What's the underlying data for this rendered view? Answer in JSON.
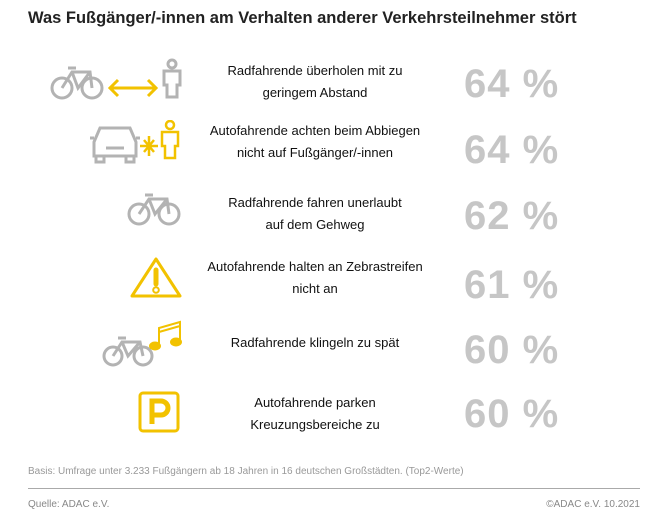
{
  "title": "Was Fußgänger/-innen am Verhalten anderer Verkehrsteilnehmer stört",
  "colors": {
    "accent": "#f2c200",
    "icon_gray": "#b3b3b3",
    "percent_gray": "#c6c6c6"
  },
  "rows": [
    {
      "line1": "Radfahrende überholen mit zu",
      "line2": "geringem Abstand",
      "value": "64 %",
      "icon": "bicycle-arrow-pedestrian-icon"
    },
    {
      "line1": "Autofahrende achten beim Abbiegen",
      "line2": "nicht auf Fußgänger/-innen",
      "value": "64 %",
      "icon": "car-collision-pedestrian-icon"
    },
    {
      "line1": "Radfahrende fahren unerlaubt",
      "line2": "auf dem Gehweg",
      "value": "62 %",
      "icon": "bicycle-icon"
    },
    {
      "line1": "Autofahrende halten an Zebrastreifen",
      "line2": "nicht an",
      "value": "61 %",
      "icon": "warning-triangle-icon"
    },
    {
      "line1": "Radfahrende klingeln zu spät",
      "line2": "",
      "value": "60 %",
      "icon": "bicycle-music-note-icon"
    },
    {
      "line1": "Autofahrende parken",
      "line2": "Kreuzungsbereiche zu",
      "value": "60 %",
      "icon": "parking-sign-icon"
    }
  ],
  "chart_data": {
    "type": "table",
    "title": "Was Fußgänger/-innen am Verhalten anderer Verkehrsteilnehmer stört",
    "categories": [
      "Radfahrende überholen mit zu geringem Abstand",
      "Autofahrende achten beim Abbiegen nicht auf Fußgänger/-innen",
      "Radfahrende fahren unerlaubt auf dem Gehweg",
      "Autofahrende halten an Zebrastreifen nicht an",
      "Radfahrende klingeln zu spät",
      "Autofahrende parken Kreuzungsbereiche zu"
    ],
    "values": [
      64,
      64,
      62,
      61,
      60,
      60
    ],
    "unit": "%"
  },
  "footer": {
    "basis": "Basis: Umfrage unter 3.233 Fußgängern ab 18 Jahren in 16 deutschen Großstädten. (Top2-Werte)",
    "source": "Quelle: ADAC e.V.",
    "copyright": "©ADAC e.V.  10.2021"
  }
}
